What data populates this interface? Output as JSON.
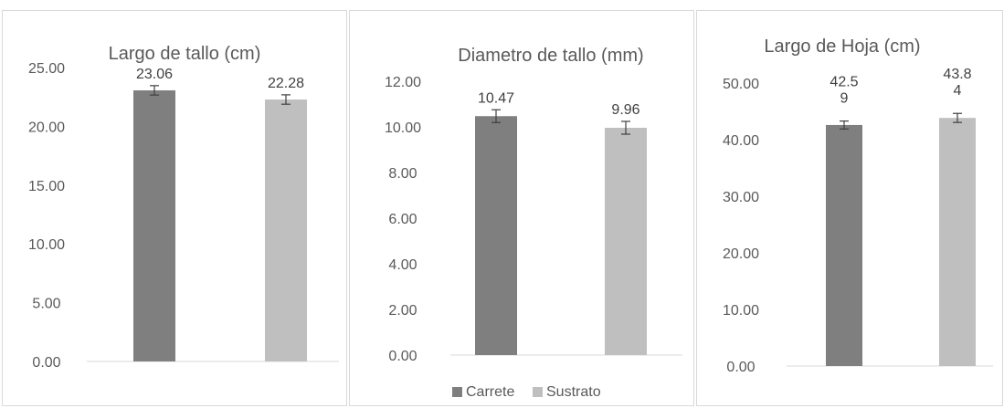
{
  "colors": {
    "carrete": "#7f7f7f",
    "sustrato": "#bfbfbf",
    "axis": "#d9d9d9",
    "text": "#595959",
    "error_bar": "#404040"
  },
  "chart_data": [
    {
      "type": "bar",
      "title": "Largo de tallo (cm)",
      "categories": [
        "Carrete",
        "Sustrato"
      ],
      "values": [
        23.06,
        22.28
      ],
      "data_labels": [
        [
          "23.06"
        ],
        [
          "22.28"
        ]
      ],
      "error": [
        0.4,
        0.4
      ],
      "ylim": [
        0,
        25
      ],
      "yticks": [
        "0.00",
        "5.00",
        "10.00",
        "15.00",
        "20.00",
        "25.00"
      ],
      "grid": false,
      "legend": null
    },
    {
      "type": "bar",
      "title": "Diametro de tallo (mm)",
      "categories": [
        "Carrete",
        "Sustrato"
      ],
      "values": [
        10.47,
        9.96
      ],
      "data_labels": [
        [
          "10.47"
        ],
        [
          "9.96"
        ]
      ],
      "error": [
        0.28,
        0.28
      ],
      "ylim": [
        0,
        12
      ],
      "yticks": [
        "0.00",
        "2.00",
        "4.00",
        "6.00",
        "8.00",
        "10.00",
        "12.00"
      ],
      "grid": false,
      "legend": "bottom",
      "legend_items": [
        "Carrete",
        "Sustrato"
      ]
    },
    {
      "type": "bar",
      "title": "Largo de Hoja (cm)",
      "categories": [
        "Carrete",
        "Sustrato"
      ],
      "values": [
        42.59,
        43.84
      ],
      "data_labels": [
        [
          "42.5",
          "9"
        ],
        [
          "43.8",
          "4"
        ]
      ],
      "error": [
        0.7,
        0.8
      ],
      "ylim": [
        0,
        50
      ],
      "yticks": [
        "0.00",
        "10.00",
        "20.00",
        "30.00",
        "40.00",
        "50.00"
      ],
      "grid": false,
      "legend": null
    }
  ]
}
